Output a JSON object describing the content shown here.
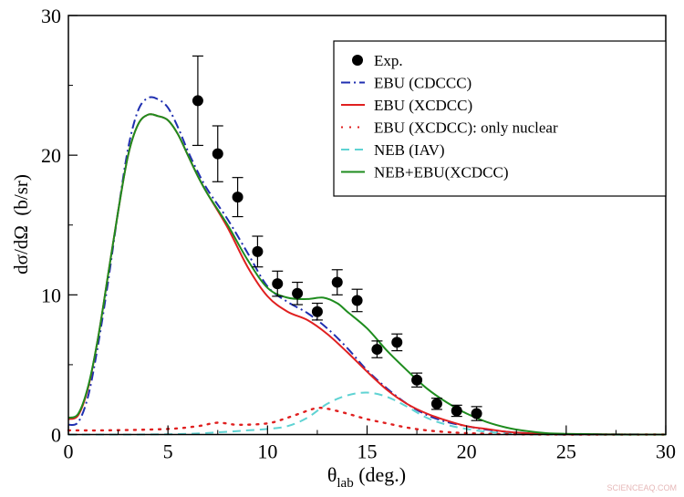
{
  "chart_data": {
    "type": "line",
    "xlabel": {
      "main": "θ",
      "sub": "lab",
      "rest": " (deg.)"
    },
    "ylabel": "dσ/dΩ  (b/sr)",
    "xlim": [
      0,
      30
    ],
    "ylim": [
      0,
      30
    ],
    "xticks": [
      0,
      5,
      10,
      15,
      20,
      25,
      30
    ],
    "yticks": [
      0,
      10,
      20,
      30
    ],
    "grid": false,
    "legend_position": "top-right",
    "series": [
      {
        "name": "Exp.",
        "kind": "points",
        "color": "#000000",
        "x": [
          6.5,
          7.5,
          8.5,
          9.5,
          10.5,
          11.5,
          12.5,
          13.5,
          14.5,
          15.5,
          16.5,
          17.5,
          18.5,
          19.5,
          20.5
        ],
        "y": [
          23.9,
          20.1,
          17.0,
          13.1,
          10.8,
          10.1,
          8.8,
          10.9,
          9.6,
          6.1,
          6.6,
          3.9,
          2.2,
          1.7,
          1.5
        ],
        "err": [
          3.2,
          2.0,
          1.4,
          1.1,
          0.9,
          0.8,
          0.6,
          0.9,
          0.8,
          0.6,
          0.6,
          0.5,
          0.4,
          0.4,
          0.5
        ]
      },
      {
        "name": "EBU (CDCCC)",
        "kind": "dashdot",
        "color": "#1f2fb0",
        "x": [
          0,
          0.5,
          1,
          1.5,
          2,
          2.5,
          3,
          3.5,
          4,
          4.5,
          5,
          5.5,
          6,
          6.5,
          7,
          8,
          9,
          10,
          11,
          12,
          13,
          14,
          15,
          16,
          17,
          18,
          19,
          20,
          21,
          22,
          23,
          24,
          25,
          30
        ],
        "y": [
          0.7,
          0.9,
          2.8,
          6.5,
          11.0,
          16.0,
          20.5,
          23.2,
          24.1,
          24.0,
          23.4,
          22.0,
          20.3,
          18.8,
          17.5,
          15.4,
          13.0,
          10.6,
          9.5,
          8.7,
          7.6,
          6.2,
          4.6,
          3.3,
          2.2,
          1.4,
          0.9,
          0.6,
          0.35,
          0.2,
          0.1,
          0.05,
          0.02,
          0
        ]
      },
      {
        "name": "EBU (XCDCC)",
        "kind": "solid",
        "color": "#e02020",
        "x": [
          0,
          0.5,
          1,
          1.5,
          2,
          2.5,
          3,
          3.5,
          4,
          4.5,
          5,
          5.5,
          6,
          6.5,
          7,
          8,
          9,
          10,
          11,
          12,
          13,
          14,
          15,
          16,
          17,
          18,
          19,
          20,
          21,
          22,
          23,
          24,
          25,
          30
        ],
        "y": [
          1.1,
          1.4,
          3.4,
          7.0,
          11.5,
          16.0,
          20.0,
          22.2,
          22.9,
          22.8,
          22.5,
          21.5,
          20.0,
          18.5,
          17.2,
          14.8,
          12.0,
          9.9,
          8.8,
          8.2,
          7.2,
          5.9,
          4.5,
          3.2,
          2.2,
          1.5,
          1.0,
          0.6,
          0.4,
          0.2,
          0.1,
          0.05,
          0.02,
          0
        ]
      },
      {
        "name": "EBU (XCDCC): only nuclear",
        "kind": "dotted",
        "color": "#e02020",
        "x": [
          0,
          2,
          5,
          6.5,
          7.5,
          8.5,
          10,
          11,
          12,
          12.5,
          13,
          14,
          15,
          16,
          17,
          18,
          19,
          20,
          22,
          25,
          30
        ],
        "y": [
          0.3,
          0.3,
          0.4,
          0.6,
          0.85,
          0.7,
          0.8,
          1.2,
          1.7,
          1.9,
          1.85,
          1.5,
          1.1,
          0.8,
          0.5,
          0.3,
          0.18,
          0.1,
          0.03,
          0,
          0
        ]
      },
      {
        "name": "NEB (IAV)",
        "kind": "dashed",
        "color": "#5fd3d3",
        "x": [
          0,
          3,
          6,
          8,
          9,
          10,
          11,
          12,
          13,
          14,
          15,
          16,
          17,
          18,
          19,
          20,
          21,
          22,
          24,
          30
        ],
        "y": [
          0,
          0,
          0.05,
          0.2,
          0.3,
          0.4,
          0.6,
          1.2,
          2.2,
          2.8,
          3.0,
          2.7,
          2.0,
          1.2,
          0.7,
          0.4,
          0.2,
          0.1,
          0,
          0
        ]
      },
      {
        "name": "NEB+EBU(XCDCC)",
        "kind": "solid",
        "color": "#1e8c1e",
        "x": [
          0,
          0.5,
          1,
          1.5,
          2,
          2.5,
          3,
          3.5,
          4,
          4.5,
          5,
          5.5,
          6,
          6.5,
          7,
          8,
          9,
          10,
          11,
          12,
          12.8,
          13.5,
          14,
          15,
          16,
          17,
          18,
          19,
          20,
          21,
          22,
          23,
          24,
          25,
          27,
          30
        ],
        "y": [
          1.2,
          1.5,
          3.5,
          7.0,
          11.5,
          16.0,
          20.0,
          22.2,
          22.9,
          22.8,
          22.5,
          21.5,
          20.0,
          18.5,
          17.2,
          15.0,
          12.5,
          10.5,
          9.8,
          9.7,
          9.8,
          9.4,
          8.8,
          7.6,
          6.0,
          4.6,
          3.3,
          2.3,
          1.5,
          0.9,
          0.5,
          0.25,
          0.1,
          0.05,
          0.01,
          0
        ]
      }
    ]
  },
  "watermark": "SCIENCEAQ.COM"
}
